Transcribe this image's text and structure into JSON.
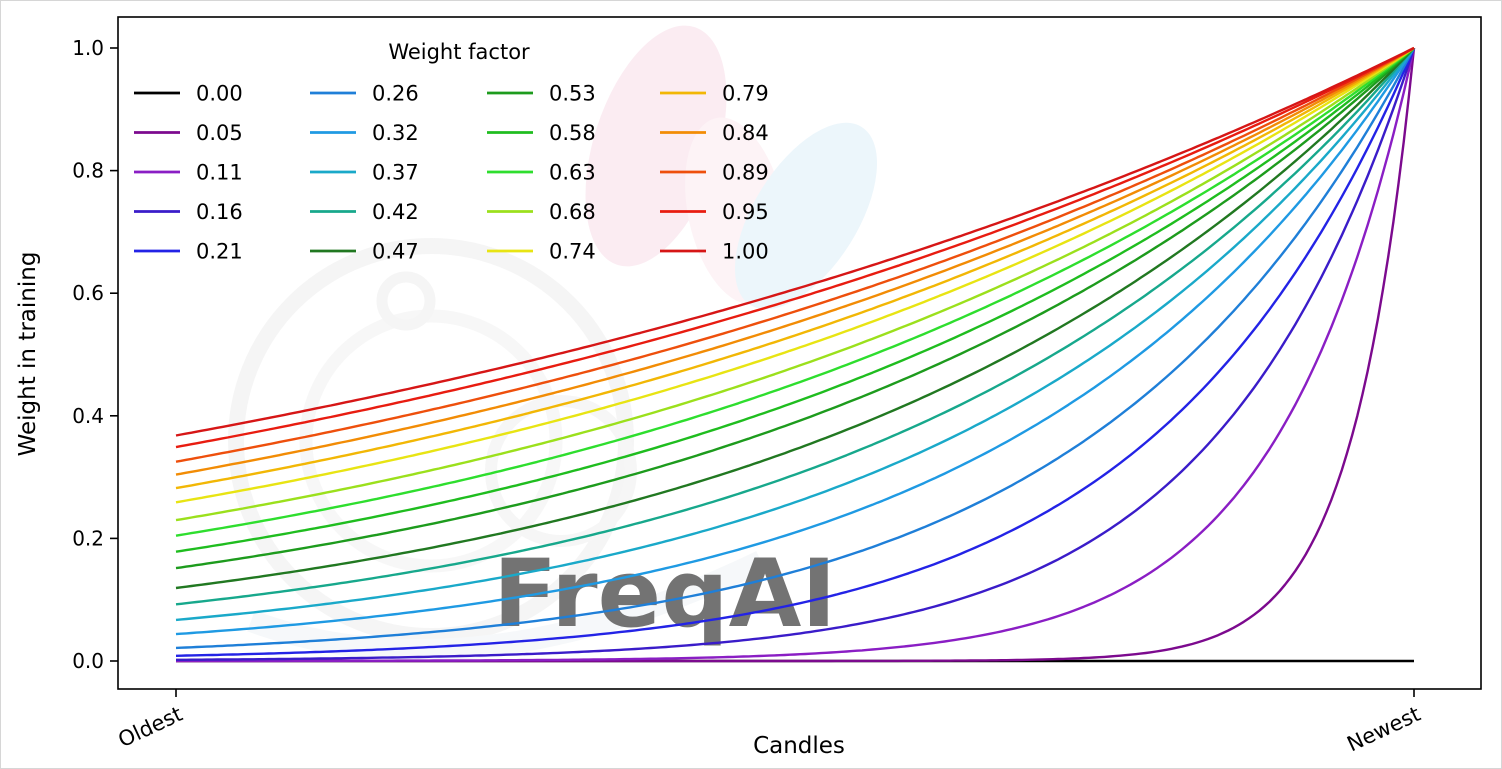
{
  "figure": {
    "xlabel": "Candles",
    "ylabel": "Weight in training",
    "x_tick_labels": [
      "Oldest",
      "Newest"
    ],
    "y_tick_labels": [
      "0.0",
      "0.2",
      "0.4",
      "0.6",
      "0.8",
      "1.0"
    ]
  },
  "legend": {
    "title": "Weight factor",
    "columns": 4,
    "rows": 5
  },
  "watermark": {
    "text": "FreqAI"
  },
  "chart_data": {
    "type": "line",
    "title": "",
    "xlabel": "Candles",
    "ylabel": "Weight in training",
    "x_axis_tick_labels": [
      "Oldest",
      "Newest"
    ],
    "x_range": [
      0,
      1
    ],
    "ylim": [
      0,
      1.0
    ],
    "y_ticks": [
      0.0,
      0.2,
      0.4,
      0.6,
      0.8,
      1.0
    ],
    "grid": false,
    "legend_title": "Weight factor",
    "legend_position": "upper left",
    "formula": "weight(x) = exp(-(1 - x) / factor) for x in [0,1] (Oldest..Newest); factor = 0 gives weight 0",
    "series": [
      {
        "name": "0.00",
        "factor": 0.0,
        "color": "#000000",
        "start_value": 0.0,
        "end_value": 0.0
      },
      {
        "name": "0.05",
        "factor": 0.05,
        "color": "#7c0a8e",
        "start_value": 0.0,
        "end_value": 1.0
      },
      {
        "name": "0.11",
        "factor": 0.11,
        "color": "#8a1ec4",
        "start_value": 0.0,
        "end_value": 1.0
      },
      {
        "name": "0.16",
        "factor": 0.16,
        "color": "#3a1cc9",
        "start_value": 0.002,
        "end_value": 1.0
      },
      {
        "name": "0.21",
        "factor": 0.21,
        "color": "#2323e6",
        "start_value": 0.009,
        "end_value": 1.0
      },
      {
        "name": "0.26",
        "factor": 0.26,
        "color": "#1f7fd8",
        "start_value": 0.021,
        "end_value": 1.0
      },
      {
        "name": "0.32",
        "factor": 0.32,
        "color": "#1f9ae3",
        "start_value": 0.044,
        "end_value": 1.0
      },
      {
        "name": "0.37",
        "factor": 0.37,
        "color": "#1aa9c9",
        "start_value": 0.067,
        "end_value": 1.0
      },
      {
        "name": "0.42",
        "factor": 0.42,
        "color": "#17a88c",
        "start_value": 0.092,
        "end_value": 1.0
      },
      {
        "name": "0.47",
        "factor": 0.47,
        "color": "#217821",
        "start_value": 0.119,
        "end_value": 1.0
      },
      {
        "name": "0.53",
        "factor": 0.53,
        "color": "#1d9b1d",
        "start_value": 0.151,
        "end_value": 1.0
      },
      {
        "name": "0.58",
        "factor": 0.58,
        "color": "#1fbd1f",
        "start_value": 0.178,
        "end_value": 1.0
      },
      {
        "name": "0.63",
        "factor": 0.63,
        "color": "#2ede2e",
        "start_value": 0.204,
        "end_value": 1.0
      },
      {
        "name": "0.68",
        "factor": 0.68,
        "color": "#9be01c",
        "start_value": 0.23,
        "end_value": 1.0
      },
      {
        "name": "0.74",
        "factor": 0.74,
        "color": "#e8e413",
        "start_value": 0.259,
        "end_value": 1.0
      },
      {
        "name": "0.79",
        "factor": 0.79,
        "color": "#f2b705",
        "start_value": 0.282,
        "end_value": 1.0
      },
      {
        "name": "0.84",
        "factor": 0.84,
        "color": "#f28c05",
        "start_value": 0.304,
        "end_value": 1.0
      },
      {
        "name": "0.89",
        "factor": 0.89,
        "color": "#ee4f0c",
        "start_value": 0.325,
        "end_value": 1.0
      },
      {
        "name": "0.95",
        "factor": 0.95,
        "color": "#e81c10",
        "start_value": 0.349,
        "end_value": 1.0
      },
      {
        "name": "1.00",
        "factor": 1.0,
        "color": "#d61616",
        "start_value": 0.368,
        "end_value": 1.0
      }
    ]
  }
}
